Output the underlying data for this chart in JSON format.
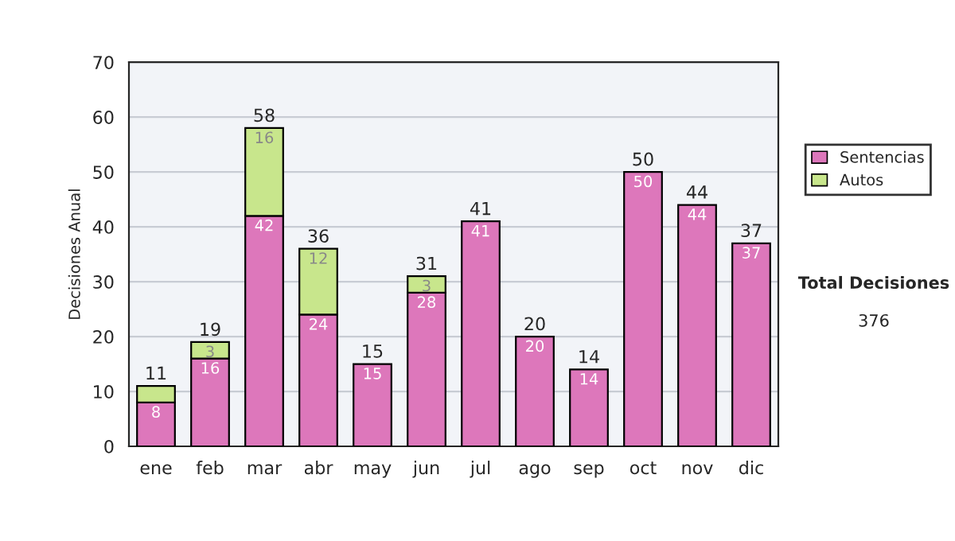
{
  "chart_data": {
    "type": "bar",
    "stacked": true,
    "ylabel": "Decisiones Anual",
    "categories": [
      "ene",
      "feb",
      "mar",
      "abr",
      "may",
      "jun",
      "jul",
      "ago",
      "sep",
      "oct",
      "nov",
      "dic"
    ],
    "series": [
      {
        "name": "Sentencias",
        "color": "#dd77bb",
        "values": [
          8,
          16,
          42,
          24,
          15,
          28,
          41,
          20,
          14,
          50,
          44,
          37
        ],
        "value_labels": [
          "8",
          "16",
          "42",
          "24",
          "15",
          "28",
          "41",
          "20",
          "14",
          "50",
          "44",
          "37"
        ]
      },
      {
        "name": "Autos",
        "color": "#c8e68c",
        "values": [
          3,
          3,
          16,
          12,
          0,
          3,
          0,
          0,
          0,
          0,
          0,
          0
        ],
        "value_labels": [
          null,
          "3",
          "16",
          "12",
          null,
          "3",
          null,
          null,
          null,
          null,
          null,
          null
        ]
      }
    ],
    "totals": [
      "11",
      "19",
      "58",
      "36",
      "15",
      "31",
      "41",
      "20",
      "14",
      "50",
      "44",
      "37"
    ],
    "ylim": [
      0,
      70
    ],
    "yticks": [
      0,
      10,
      20,
      30,
      40,
      50,
      60,
      70
    ],
    "grid": "y",
    "legend": "right",
    "annotations": [
      "Total Decisiones",
      "376"
    ]
  }
}
